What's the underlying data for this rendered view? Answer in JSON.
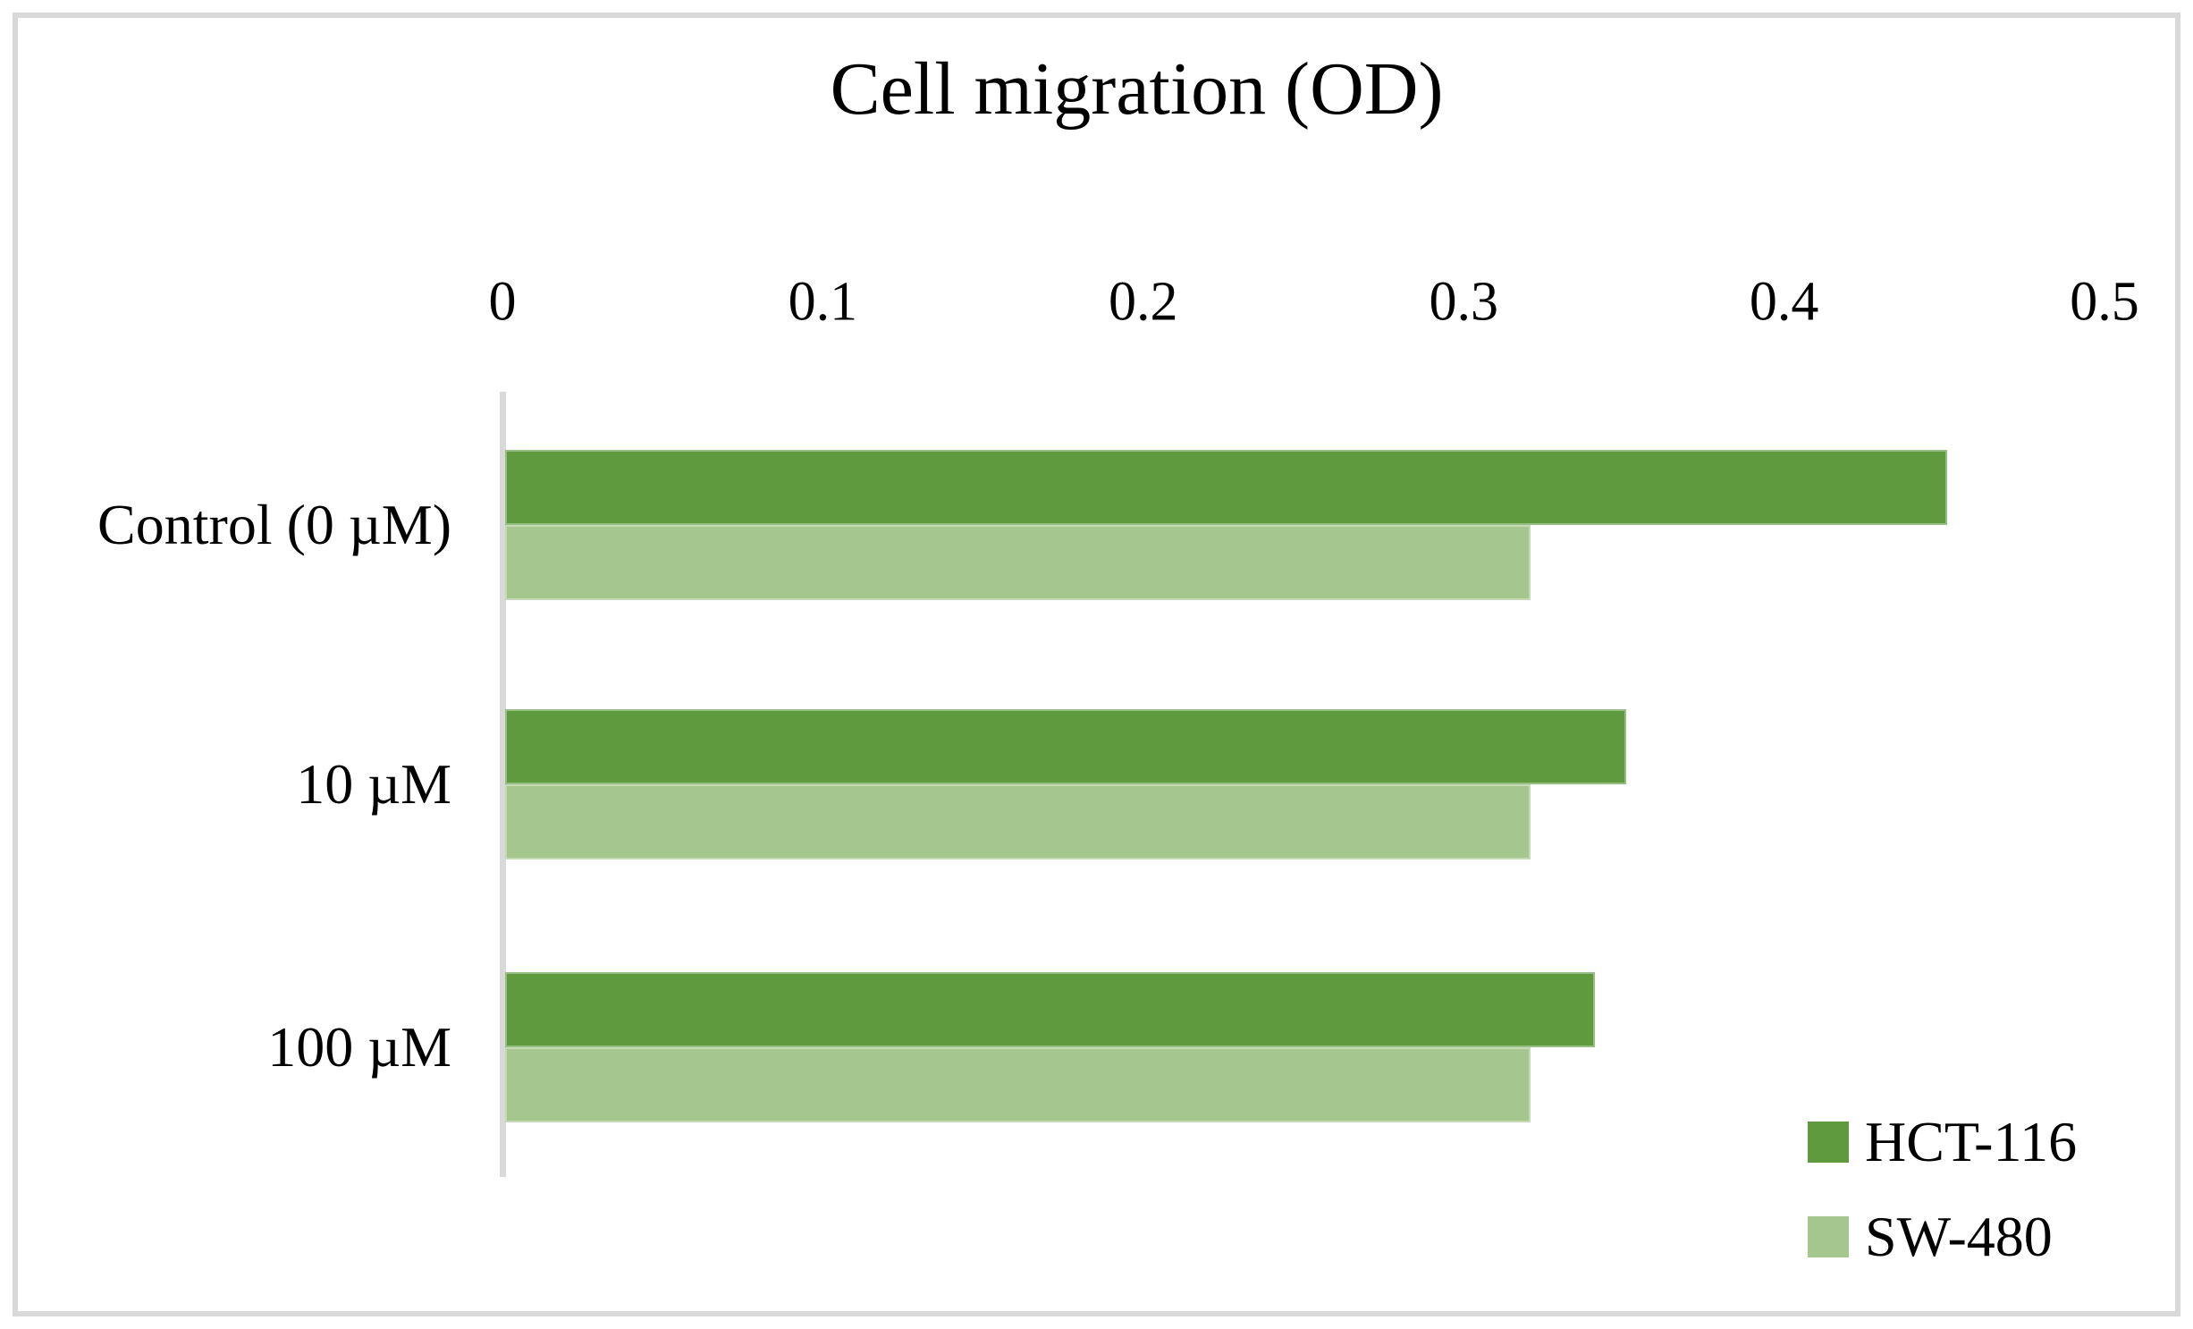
{
  "chart_data": {
    "type": "bar",
    "orientation": "horizontal",
    "title": "Cell migration (OD)",
    "categories": [
      "Control (0 µM)",
      "10 µM",
      "100 µM"
    ],
    "series": [
      {
        "name": "HCT-116",
        "color": "#5F9A3F",
        "values": [
          0.45,
          0.35,
          0.34
        ]
      },
      {
        "name": "SW-480",
        "color": "#A5C78E",
        "values": [
          0.32,
          0.32,
          0.32
        ]
      }
    ],
    "xlim": [
      0,
      0.5
    ],
    "xticks": [
      "0",
      "0.1",
      "0.2",
      "0.3",
      "0.4",
      "0.5"
    ],
    "grid": false,
    "legend_position": "bottom-right",
    "axis_line_color": "#D9D9D9",
    "frame_border_color": "#D9D9D9",
    "background_color": "#FFFFFF",
    "text_color": "#000000"
  }
}
